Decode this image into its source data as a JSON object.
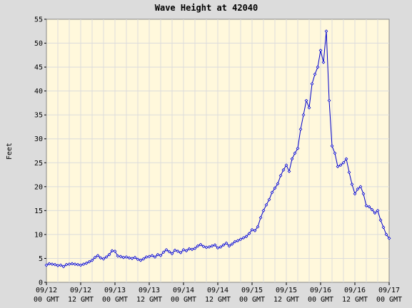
{
  "chart_data": {
    "type": "line",
    "title": "Wave Height at 42040",
    "xlabel": "",
    "ylabel": "Feet",
    "ylim": [
      0,
      55
    ],
    "yticks": [
      0,
      5,
      10,
      15,
      20,
      25,
      30,
      35,
      40,
      45,
      50,
      55
    ],
    "xlim": [
      0,
      120
    ],
    "xticks": [
      {
        "hour": 0,
        "date": "09/12",
        "time": "00 GMT"
      },
      {
        "hour": 12,
        "date": "09/12",
        "time": "12 GMT"
      },
      {
        "hour": 24,
        "date": "09/13",
        "time": "00 GMT"
      },
      {
        "hour": 36,
        "date": "09/13",
        "time": "12 GMT"
      },
      {
        "hour": 48,
        "date": "09/14",
        "time": "00 GMT"
      },
      {
        "hour": 60,
        "date": "09/14",
        "time": "12 GMT"
      },
      {
        "hour": 72,
        "date": "09/15",
        "time": "00 GMT"
      },
      {
        "hour": 84,
        "date": "09/15",
        "time": "12 GMT"
      },
      {
        "hour": 96,
        "date": "09/16",
        "time": "00 GMT"
      },
      {
        "hour": 108,
        "date": "09/16",
        "time": "12 GMT"
      },
      {
        "hour": 120,
        "date": "09/17",
        "time": "00 GMT"
      }
    ],
    "grid": true,
    "colors": {
      "background": "#dcdcdc",
      "plot": "#fff8dc",
      "grid": "#dcdcdc",
      "line": "#0000cc"
    },
    "series": [
      {
        "name": "",
        "x": [
          0,
          1,
          2,
          3,
          4,
          5,
          6,
          7,
          8,
          9,
          10,
          11,
          12,
          13,
          14,
          15,
          16,
          17,
          18,
          19,
          20,
          21,
          22,
          23,
          24,
          25,
          26,
          27,
          28,
          29,
          30,
          31,
          32,
          33,
          34,
          35,
          36,
          37,
          38,
          39,
          40,
          41,
          42,
          43,
          44,
          45,
          46,
          47,
          48,
          49,
          50,
          51,
          52,
          53,
          54,
          55,
          56,
          57,
          58,
          59,
          60,
          61,
          62,
          63,
          64,
          65,
          66,
          67,
          68,
          69,
          70,
          71,
          72,
          73,
          74,
          75,
          76,
          77,
          78,
          79,
          80,
          81,
          82,
          83,
          84,
          85,
          86,
          87,
          88,
          89,
          90,
          91,
          92,
          93,
          94,
          95,
          96,
          97,
          98,
          99,
          100,
          101,
          102,
          103,
          104,
          105,
          106,
          107,
          108,
          109,
          110,
          111,
          112,
          113,
          114,
          115,
          116,
          117,
          118,
          119,
          120
        ],
        "y": [
          3.6,
          3.9,
          3.8,
          3.7,
          3.5,
          3.6,
          3.3,
          3.7,
          3.8,
          3.9,
          3.8,
          3.7,
          3.6,
          3.8,
          4.0,
          4.3,
          4.6,
          5.2,
          5.6,
          5.1,
          4.9,
          5.3,
          5.8,
          6.6,
          6.5,
          5.5,
          5.4,
          5.2,
          5.3,
          5.1,
          5.0,
          5.2,
          4.8,
          4.6,
          4.9,
          5.3,
          5.4,
          5.6,
          5.3,
          5.8,
          5.6,
          6.3,
          6.8,
          6.4,
          6.0,
          6.7,
          6.5,
          6.2,
          6.8,
          6.6,
          7.0,
          6.9,
          7.1,
          7.6,
          7.9,
          7.5,
          7.3,
          7.4,
          7.6,
          7.8,
          7.2,
          7.4,
          7.8,
          8.2,
          7.6,
          8.0,
          8.5,
          8.7,
          9.0,
          9.3,
          9.6,
          10.2,
          11.0,
          10.8,
          11.6,
          13.5,
          15.0,
          16.2,
          17.3,
          18.8,
          19.7,
          20.6,
          22.3,
          23.5,
          24.5,
          23.2,
          25.8,
          27.0,
          28.0,
          32.0,
          35.0,
          38.0,
          36.5,
          41.5,
          43.5,
          45.0,
          48.5,
          46.0,
          52.5,
          38.0,
          28.5,
          27.0,
          24.2,
          24.5,
          25.0,
          25.8,
          23.0,
          20.5,
          18.5,
          19.5,
          20.0,
          18.5,
          16.0,
          15.8,
          15.2,
          14.5,
          15.0,
          13.0,
          11.5,
          10.0,
          9.2
        ]
      }
    ]
  }
}
